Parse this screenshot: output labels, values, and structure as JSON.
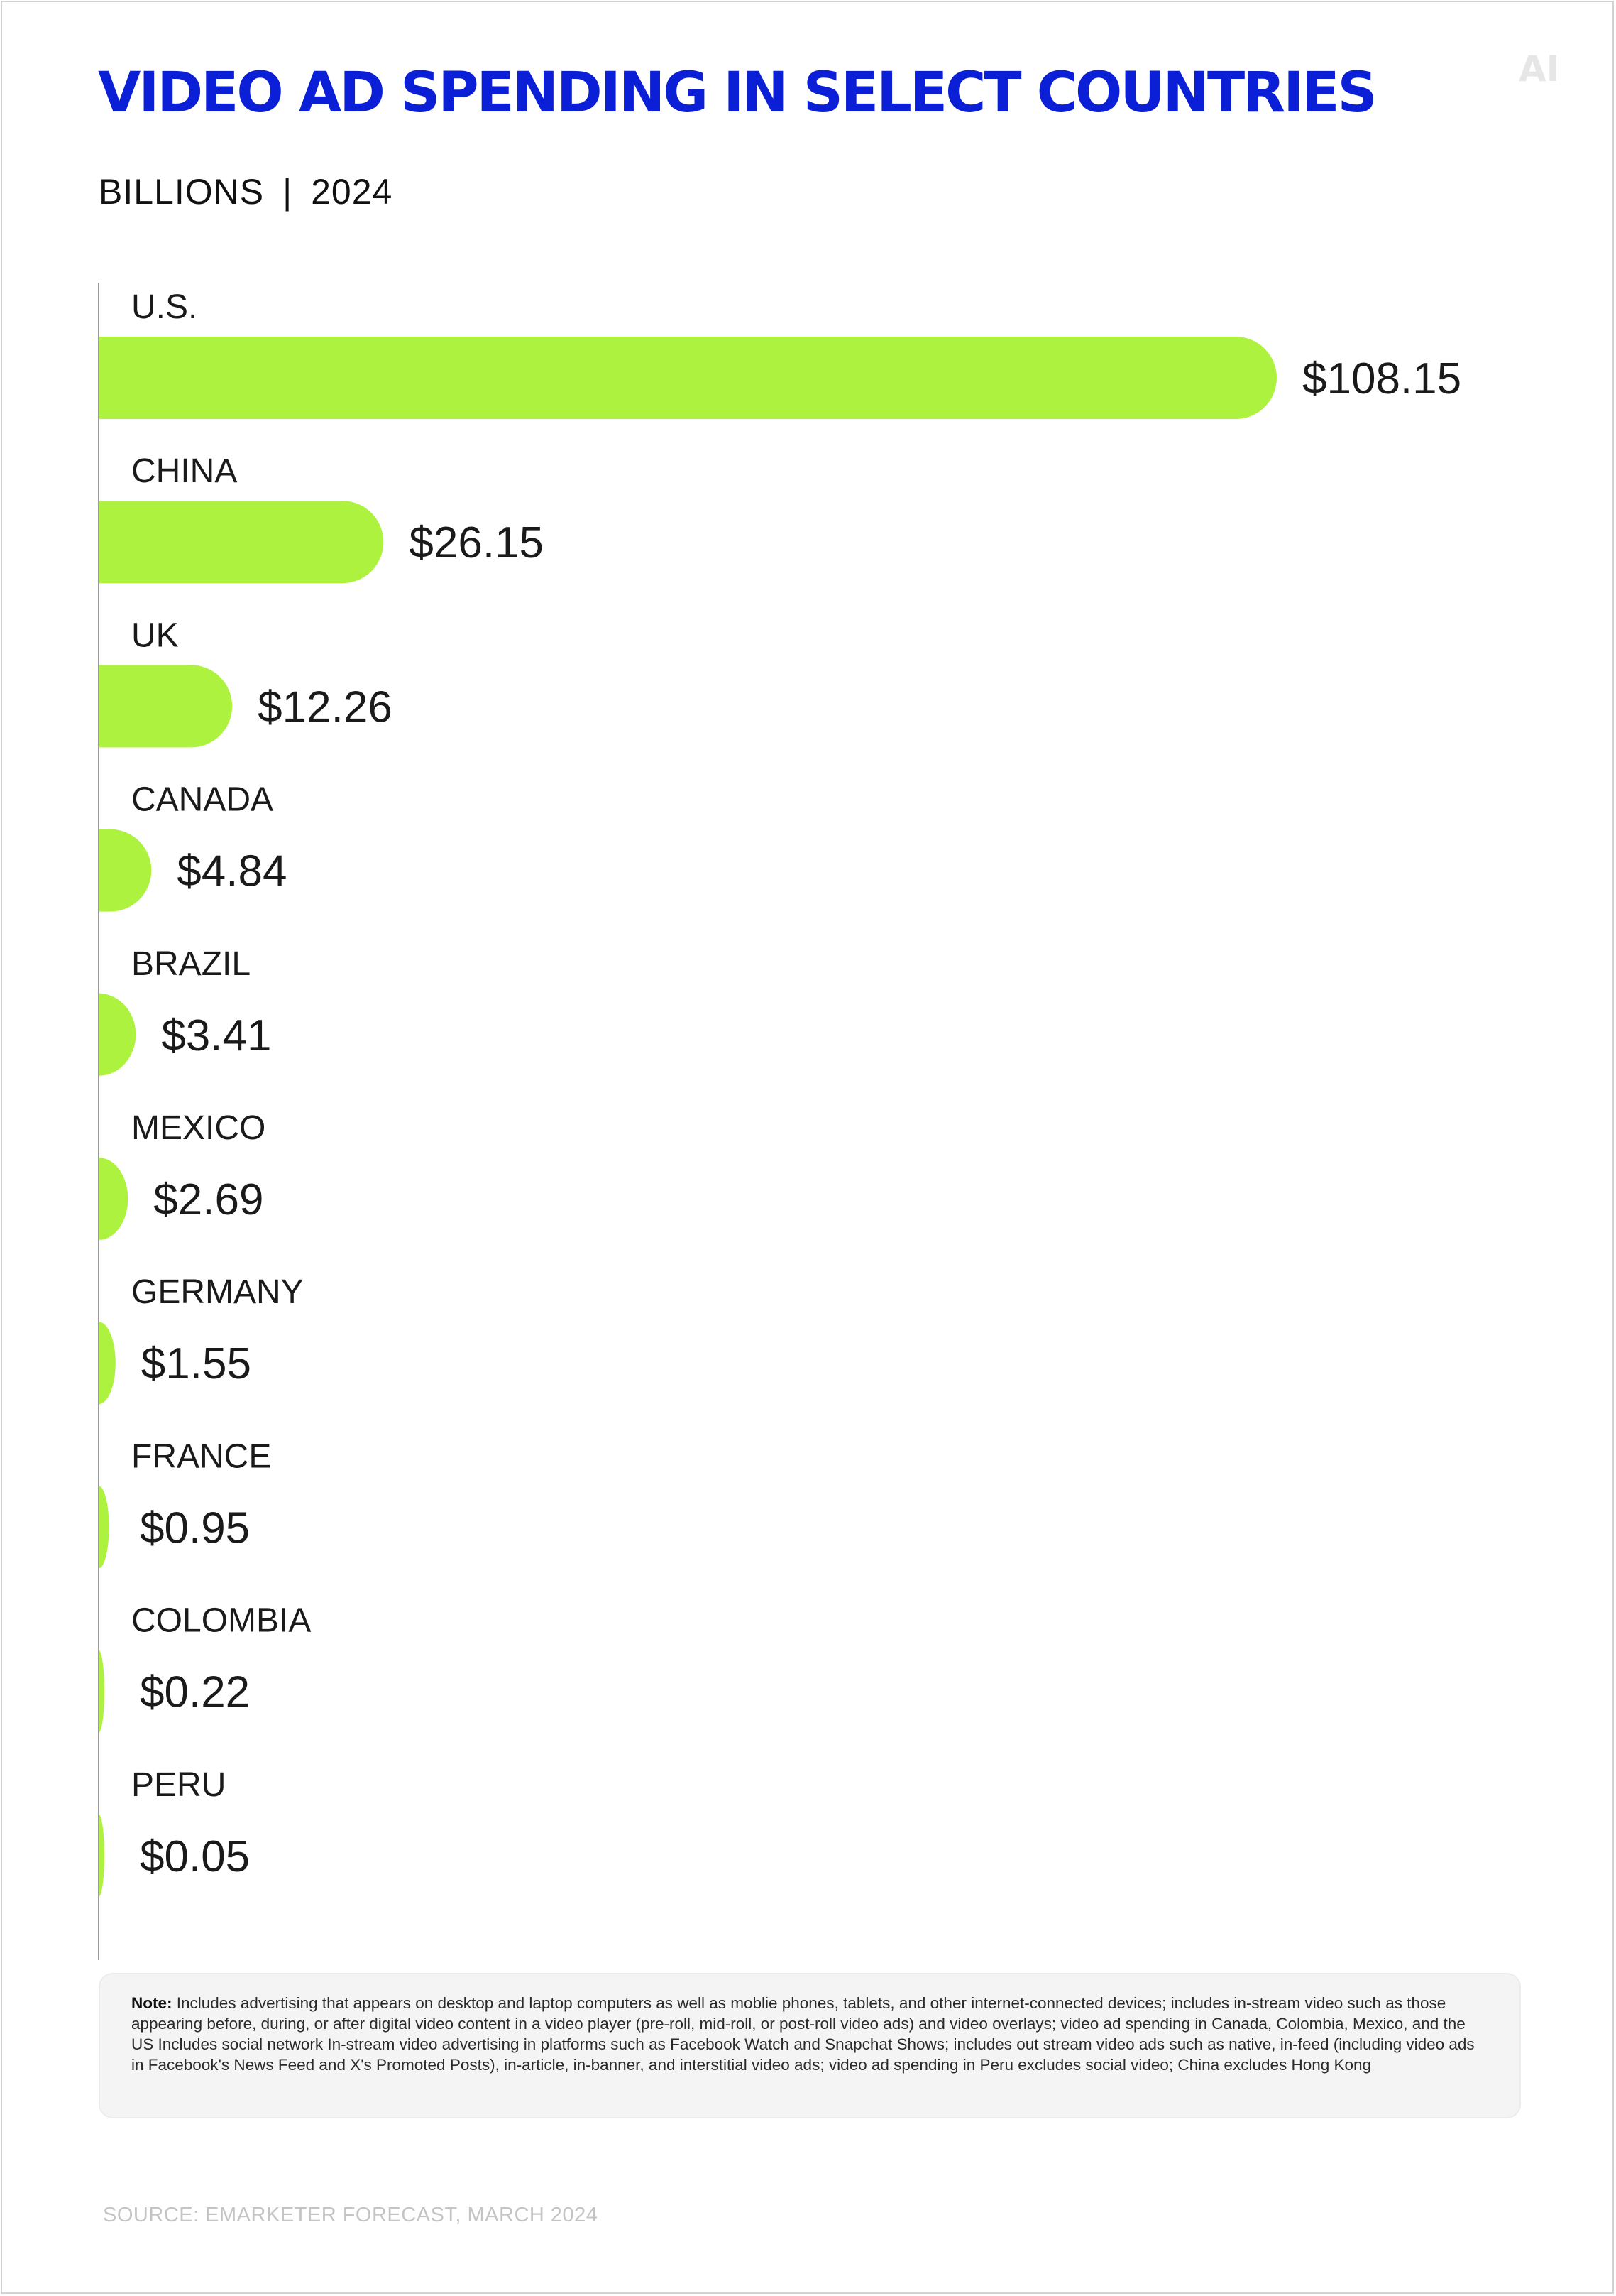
{
  "header": {
    "title": "VIDEO AD SPENDING IN SELECT COUNTRIES",
    "unit": "BILLIONS",
    "separator": "|",
    "year": "2024",
    "logo": "AI"
  },
  "chart_data": {
    "type": "bar",
    "orientation": "horizontal",
    "categories": [
      "U.S.",
      "CHINA",
      "UK",
      "CANADA",
      "BRAZIL",
      "MEXICO",
      "GERMANY",
      "FRANCE",
      "COLOMBIA",
      "PERU"
    ],
    "values": [
      108.15,
      26.15,
      12.26,
      4.84,
      3.41,
      2.69,
      1.55,
      0.95,
      0.22,
      0.05
    ],
    "value_labels": [
      "$108.15",
      "$26.15",
      "$12.26",
      "$4.84",
      "$3.41",
      "$2.69",
      "$1.55",
      "$0.95",
      "$0.22",
      "$0.05"
    ],
    "title": "VIDEO AD SPENDING IN SELECT COUNTRIES",
    "subtitle": "BILLIONS | 2024",
    "bar_color": "#adf23e",
    "grid": false,
    "legend": "none"
  },
  "note": {
    "label": "Note:",
    "text": "Includes advertising that appears on desktop and laptop computers as well as moblie phones, tablets, and other internet-connected devices; includes in-stream video such as those appearing before, during, or after digital video content in a video player (pre-roll, mid-roll, or post-roll video ads) and video overlays; video ad spending in Canada, Colombia, Mexico, and the US Includes social network In-stream video advertising in platforms such as Facebook Watch and Snapchat Shows; includes out stream video ads such as native, in-feed (including video ads in Facebook's News Feed and X's Promoted Posts), in-article, in-banner, and interstitial video ads; video ad spending in Peru excludes social video; China excludes Hong Kong"
  },
  "footer": {
    "source": "SOURCE: EMARKETER FORECAST, MARCH 2024"
  },
  "colors": {
    "title": "#0a1fd6",
    "bar": "#adf23e",
    "text": "#1a1a1a",
    "source": "#c4c4c4"
  }
}
